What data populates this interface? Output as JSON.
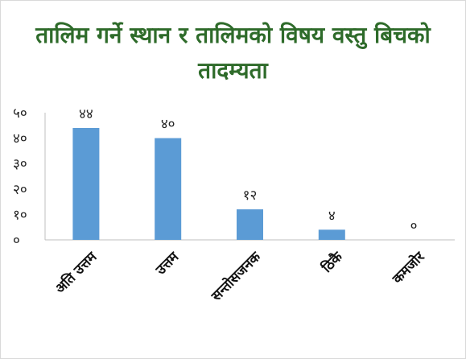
{
  "chart_data": {
    "type": "bar",
    "title": "तालिम गर्ने स्थान र तालिमको विषय वस्तु बिचको तादम्यता",
    "categories": [
      "अति उत्तम",
      "उत्तम",
      "सन्तोसजनक",
      "ठिकै",
      "कमजोर"
    ],
    "values": [
      44,
      40,
      12,
      4,
      0
    ],
    "data_labels": [
      "४४",
      "४०",
      "१२",
      "४",
      "०"
    ],
    "y_ticks": [
      0,
      10,
      20,
      30,
      40,
      50
    ],
    "y_tick_labels": [
      "०",
      "१०",
      "२०",
      "३०",
      "४०",
      "५०"
    ],
    "ylim": [
      0,
      50
    ],
    "xlabel": "",
    "ylabel": "",
    "grid": false,
    "legend": "none",
    "bar_color": "#5b9bd5",
    "title_color": "#2e6b2a"
  }
}
